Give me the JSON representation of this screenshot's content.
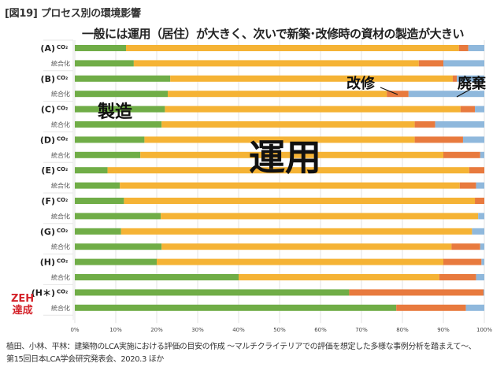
{
  "figure_label": "[図19] プロセス別の環境影響",
  "headline": "一般には運用（居住）が大きく、次いで新築･改修時の資材の製造が大きい",
  "annotations": {
    "manufacture": "製造",
    "operation": "運用",
    "renovation": "改修",
    "disposal": "廃棄",
    "zeh_line1": "ZEH",
    "zeh_line2": "達成"
  },
  "caption": {
    "line1": "植田、小林、平林：建築物のLCA実施における評価の目安の作成 〜マルチクライテリアでの評価を想定した多様な事例分析を踏まえて〜、",
    "line2": "第15回日本LCA学会研究発表会、2020.3 ほか"
  },
  "colors": {
    "manufacture": "#70AD47",
    "operation": "#F5B335",
    "renovation": "#E87A3E",
    "disposal": "#8FB8DC",
    "grid": "#e3e3e3",
    "zeh": "#d4232a"
  },
  "chart_data": {
    "type": "bar",
    "orientation": "horizontal",
    "stacked": true,
    "percent_stacked": true,
    "title": "一般には運用（居住）が大きく、次いで新築･改修時の資材の製造が大きい",
    "xlabel": "",
    "ylabel": "",
    "xlim": [
      0,
      100
    ],
    "x_ticks": [
      "0%",
      "10%",
      "20%",
      "30%",
      "40%",
      "50%",
      "60%",
      "70%",
      "80%",
      "90%",
      "100%"
    ],
    "grid": true,
    "legend": "none (inline annotations)",
    "groups": [
      {
        "case": "(A)",
        "suffix": "CO₂"
      },
      {
        "case": "(B)",
        "suffix": "CO₂"
      },
      {
        "case": "(C)",
        "suffix": "CO₂"
      },
      {
        "case": "(D)",
        "suffix": "CO₂"
      },
      {
        "case": "(E)",
        "suffix": "CO₂"
      },
      {
        "case": "(F)",
        "suffix": "CO₂"
      },
      {
        "case": "(G)",
        "suffix": "CO₂"
      },
      {
        "case": "(H)",
        "suffix": "CO₂"
      },
      {
        "case": "(H＊)",
        "suffix": "CO₂"
      }
    ],
    "integrated_label": "統合化",
    "categories": [
      "(A) CO₂",
      "(A) 統合化",
      "(B) CO₂",
      "(B) 統合化",
      "(C) CO₂",
      "(C) 統合化",
      "(D) CO₂",
      "(D) 統合化",
      "(E) CO₂",
      "(E) 統合化",
      "(F) CO₂",
      "(F) 統合化",
      "(G) CO₂",
      "(G) 統合化",
      "(H) CO₂",
      "(H) 統合化",
      "(H＊) CO₂",
      "(H＊) 統合化"
    ],
    "series": [
      {
        "name": "製造",
        "key": "manufacture",
        "values": [
          12.5,
          14.4,
          23.3,
          22.7,
          22.0,
          21.2,
          17.0,
          16.0,
          8.0,
          11.0,
          12.0,
          21.0,
          11.3,
          21.2,
          20.0,
          40.0,
          67.0,
          78.5
        ]
      },
      {
        "name": "運用",
        "key": "operation",
        "values": [
          81.3,
          69.6,
          69.0,
          53.5,
          72.2,
          61.8,
          66.0,
          74.0,
          88.3,
          83.0,
          85.7,
          77.5,
          85.7,
          70.8,
          70.0,
          49.0,
          0.0,
          0.0
        ]
      },
      {
        "name": "改修",
        "key": "renovation",
        "values": [
          2.3,
          6.0,
          1.0,
          5.3,
          3.5,
          5.0,
          11.8,
          9.0,
          3.7,
          4.0,
          2.3,
          0.0,
          0.0,
          7.0,
          9.3,
          9.0,
          32.8,
          17.0
        ]
      },
      {
        "name": "廃棄",
        "key": "disposal",
        "values": [
          3.9,
          10.0,
          6.7,
          18.5,
          2.3,
          12.0,
          5.2,
          1.0,
          0.0,
          2.0,
          0.0,
          1.5,
          3.0,
          1.0,
          0.7,
          2.0,
          0.2,
          4.5
        ]
      }
    ]
  }
}
